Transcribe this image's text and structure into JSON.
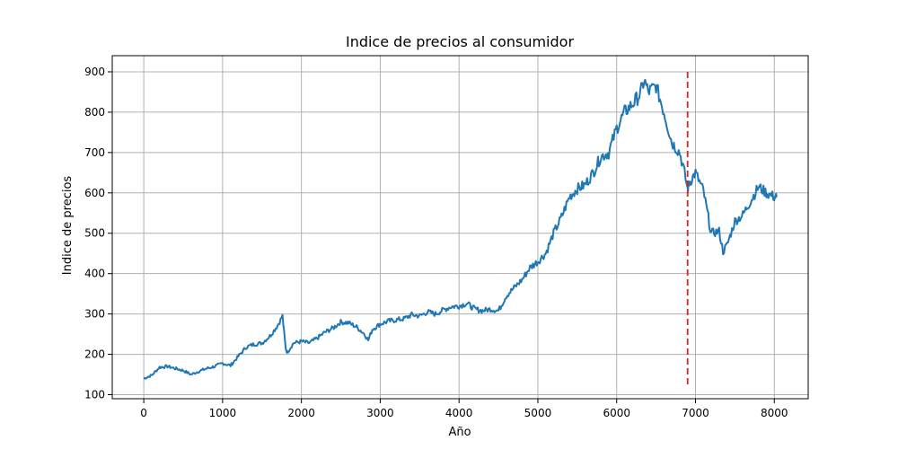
{
  "chart_data": {
    "type": "line",
    "title": "Indice de precios al consumidor",
    "xlabel": "Año",
    "ylabel": "Indice de precios",
    "xlim": [
      -400,
      8430
    ],
    "ylim": [
      90,
      940
    ],
    "xticks": [
      0,
      1000,
      2000,
      3000,
      4000,
      5000,
      6000,
      7000,
      8000
    ],
    "yticks": [
      100,
      200,
      300,
      400,
      500,
      600,
      700,
      800,
      900
    ],
    "grid": true,
    "legend": "none",
    "colors": {
      "series": "#1f77b4",
      "marker_line": "#d62728"
    },
    "series": [
      {
        "x": [
          0,
          100,
          200,
          300,
          400,
          500,
          600,
          700,
          800,
          900,
          1000,
          1100,
          1200,
          1300,
          1400,
          1500,
          1600,
          1700,
          1760,
          1800,
          1820,
          1900,
          2000,
          2100,
          2200,
          2300,
          2400,
          2500,
          2600,
          2700,
          2800,
          2850,
          2900,
          3000,
          3100,
          3200,
          3300,
          3400,
          3500,
          3600,
          3700,
          3800,
          3900,
          4000,
          4100,
          4200,
          4300,
          4400,
          4500,
          4600,
          4700,
          4800,
          4900,
          5000,
          5100,
          5200,
          5300,
          5400,
          5500,
          5600,
          5700,
          5800,
          5900,
          6000,
          6100,
          6200,
          6300,
          6350,
          6400,
          6500,
          6600,
          6700,
          6800,
          6850,
          6900,
          6920,
          7000,
          7100,
          7200,
          7300,
          7350,
          7400,
          7500,
          7600,
          7700,
          7800,
          7900,
          8000,
          8030
        ],
        "y": [
          140,
          148,
          168,
          170,
          165,
          160,
          150,
          158,
          165,
          170,
          178,
          172,
          195,
          218,
          225,
          228,
          245,
          272,
          295,
          215,
          205,
          228,
          232,
          228,
          240,
          255,
          265,
          280,
          278,
          268,
          250,
          235,
          262,
          275,
          282,
          285,
          288,
          298,
          295,
          305,
          300,
          310,
          318,
          320,
          326,
          312,
          308,
          312,
          308,
          345,
          365,
          385,
          415,
          430,
          450,
          500,
          540,
          590,
          610,
          620,
          650,
          690,
          700,
          760,
          800,
          820,
          845,
          880,
          850,
          865,
          800,
          725,
          700,
          660,
          610,
          625,
          650,
          605,
          500,
          505,
          455,
          470,
          530,
          545,
          580,
          615,
          600,
          590,
          590
        ]
      }
    ],
    "vline": {
      "x": 6900,
      "ymin": 125,
      "ymax": 900,
      "style": "dashed"
    }
  }
}
